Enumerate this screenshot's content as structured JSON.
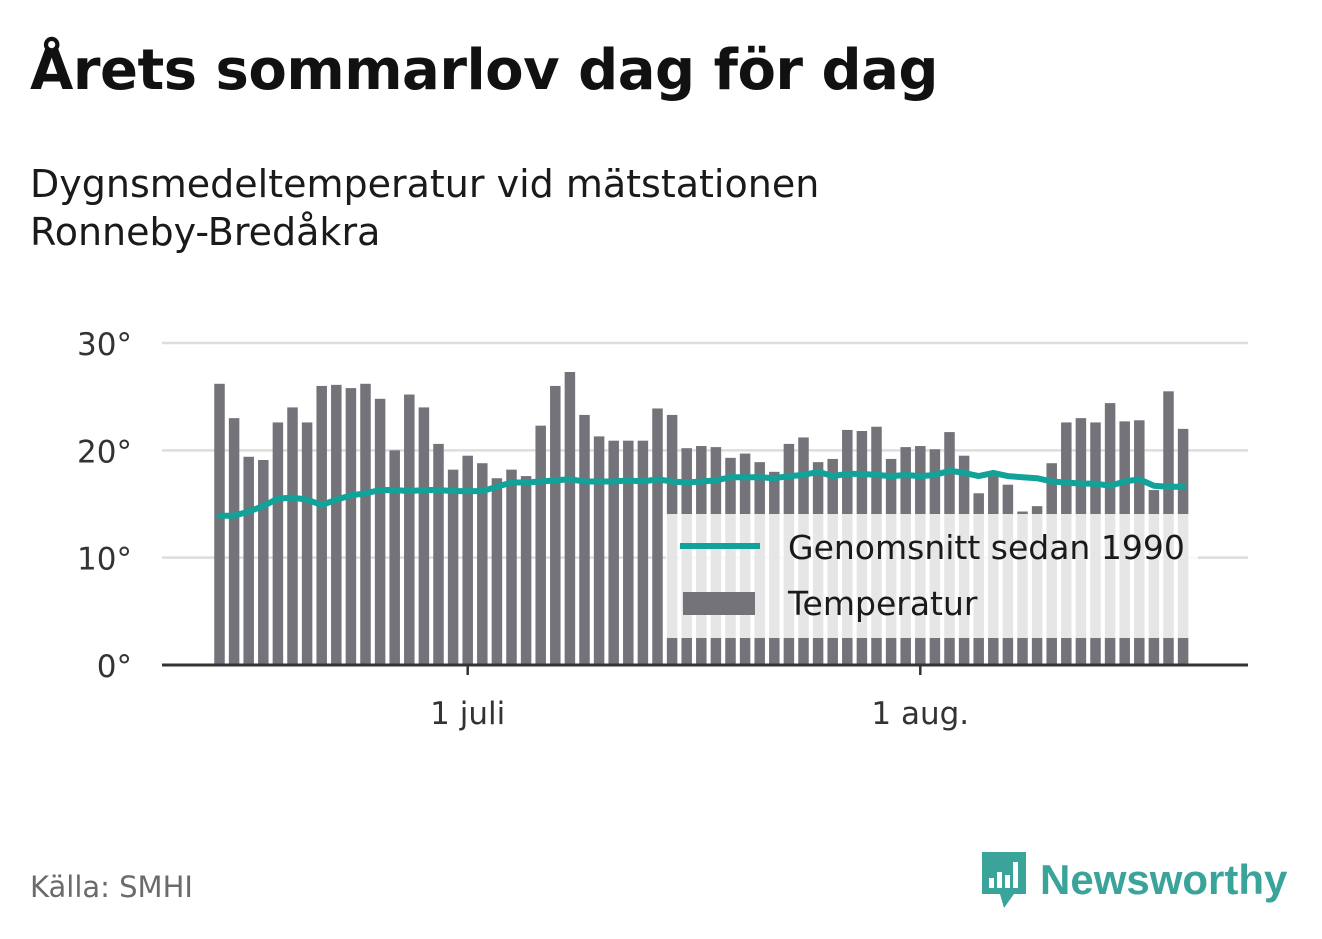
{
  "title": "Årets sommarlov dag för dag",
  "subtitle_line1": "Dygnsmedeltemperatur vid mätstationen",
  "subtitle_line2": "Ronneby-Bredåkra",
  "source": "Källa: SMHI",
  "brand": {
    "name": "Newsworthy",
    "icon": "bar-chart-logo-icon",
    "color": "#3aa39a"
  },
  "chart_data": {
    "type": "bar",
    "ylim": [
      0,
      30
    ],
    "y_ticks": [
      0,
      10,
      20,
      30
    ],
    "y_tick_labels": [
      "0°",
      "10°",
      "20°",
      "30°"
    ],
    "x_ticks": [
      {
        "day_index": 17,
        "label": "1 juli"
      },
      {
        "day_index": 48,
        "label": "1 aug."
      }
    ],
    "grid": true,
    "legend_position": "bottom-right",
    "colors": {
      "bars": "#747379",
      "line": "#11a29a",
      "grid": "#dddddd",
      "axis": "#333333"
    },
    "series": [
      {
        "name": "Temperatur",
        "type": "bar",
        "values": [
          26.2,
          23,
          19.4,
          19.1,
          22.6,
          24,
          22.6,
          26,
          26.1,
          25.8,
          26.2,
          24.8,
          20,
          25.2,
          24,
          20.6,
          18.2,
          19.5,
          18.8,
          17.4,
          18.2,
          17.6,
          22.3,
          26,
          27.3,
          23.3,
          21.3,
          20.9,
          20.9,
          20.9,
          23.9,
          23.3,
          20.2,
          20.4,
          20.3,
          19.3,
          19.7,
          18.9,
          18,
          20.6,
          21.2,
          18.9,
          19.2,
          21.9,
          21.8,
          22.2,
          19.2,
          20.3,
          20.4,
          20.1,
          21.7,
          19.5,
          16,
          17.6,
          16.8,
          14.3,
          14.8,
          18.8,
          22.6,
          23,
          22.6,
          24.4,
          22.7,
          22.8,
          16.3,
          25.5,
          22
        ]
      },
      {
        "name": "Genomsnitt sedan 1990",
        "type": "line",
        "values": [
          13.9,
          13.9,
          14.3,
          14.8,
          15.5,
          15.6,
          15.4,
          14.9,
          15.4,
          15.8,
          16,
          16.3,
          16.3,
          16.2,
          16.3,
          16.3,
          16.2,
          16.2,
          16.2,
          16.6,
          17,
          17,
          17.1,
          17.2,
          17.3,
          17.1,
          17.1,
          17.1,
          17.2,
          17.1,
          17.3,
          17.1,
          17,
          17.1,
          17.2,
          17.5,
          17.5,
          17.5,
          17.4,
          17.6,
          17.7,
          18,
          17.6,
          17.8,
          17.8,
          17.7,
          17.6,
          17.7,
          17.6,
          17.7,
          18.1,
          17.9,
          17.6,
          17.9,
          17.6,
          17.5,
          17.4,
          17.1,
          17,
          16.9,
          16.9,
          16.7,
          17.1,
          17.3,
          16.7,
          16.6,
          16.6
        ]
      }
    ]
  }
}
